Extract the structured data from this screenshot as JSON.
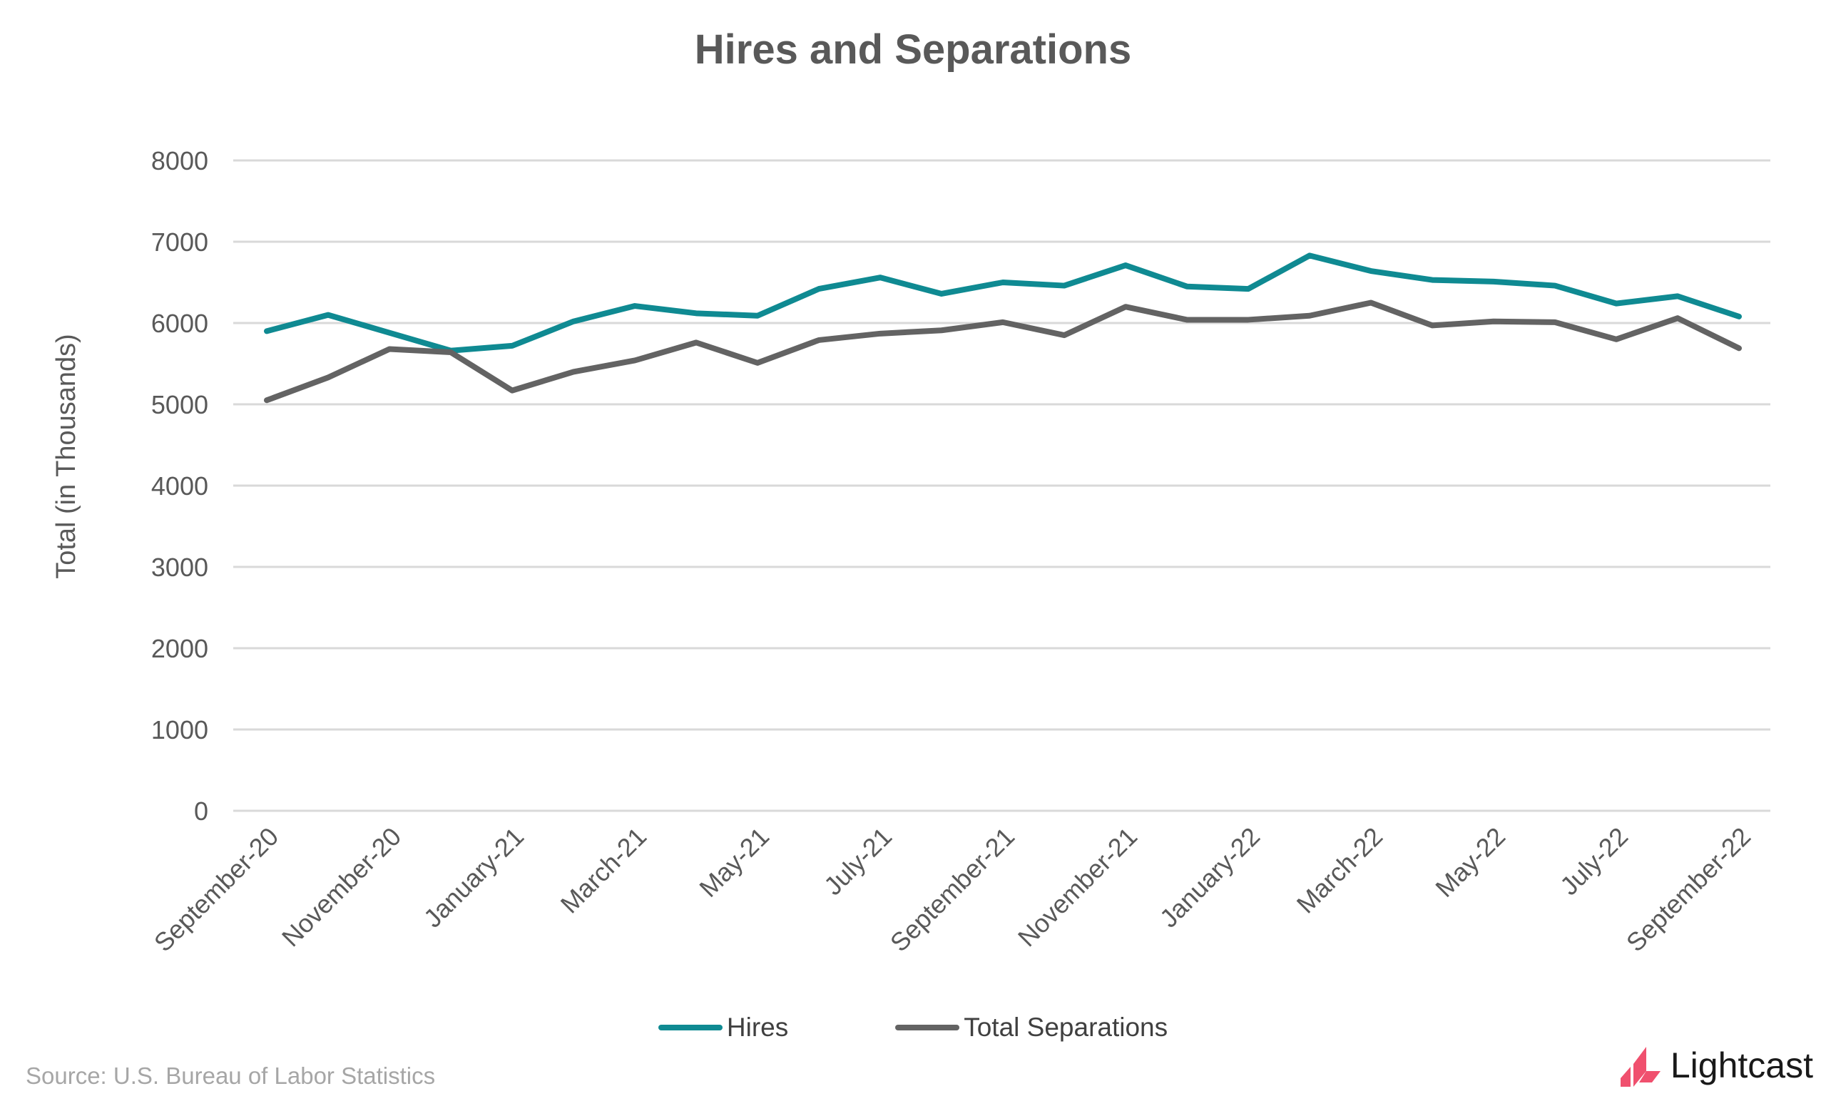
{
  "chart_data": {
    "type": "line",
    "title": "Hires and Separations",
    "ylabel": "Total (in Thousands)",
    "xlabel": "",
    "ylim": [
      0,
      8000
    ],
    "yticks": [
      0,
      1000,
      2000,
      3000,
      4000,
      5000,
      6000,
      7000,
      8000
    ],
    "grid": true,
    "legend_position": "bottom",
    "x": [
      "September-20",
      "October-20",
      "November-20",
      "December-20",
      "January-21",
      "February-21",
      "March-21",
      "April-21",
      "May-21",
      "June-21",
      "July-21",
      "August-21",
      "September-21",
      "October-21",
      "November-21",
      "December-21",
      "January-22",
      "February-22",
      "March-22",
      "April-22",
      "May-22",
      "June-22",
      "July-22",
      "August-22",
      "September-22"
    ],
    "xtick_labels": [
      "September-20",
      "November-20",
      "January-21",
      "March-21",
      "May-21",
      "July-21",
      "September-21",
      "November-21",
      "January-22",
      "March-22",
      "May-22",
      "July-22",
      "September-22"
    ],
    "series": [
      {
        "name": "Hires",
        "color": "#0f8a92",
        "values": [
          5900,
          6100,
          5880,
          5660,
          5720,
          6020,
          6210,
          6120,
          6090,
          6420,
          6560,
          6360,
          6500,
          6460,
          6710,
          6450,
          6420,
          6830,
          6640,
          6530,
          6510,
          6460,
          6240,
          6330,
          6080
        ]
      },
      {
        "name": "Total Separations",
        "color": "#636363",
        "values": [
          5050,
          5330,
          5680,
          5640,
          5170,
          5400,
          5540,
          5760,
          5510,
          5790,
          5870,
          5910,
          6010,
          5850,
          6200,
          6040,
          6040,
          6090,
          6250,
          5970,
          6020,
          6010,
          5800,
          6060,
          5690
        ]
      }
    ]
  },
  "footer": {
    "source": "Source:  U.S. Bureau of Labor Statistics",
    "logo_text": "Lightcast",
    "logo_color": "#f0506e"
  }
}
